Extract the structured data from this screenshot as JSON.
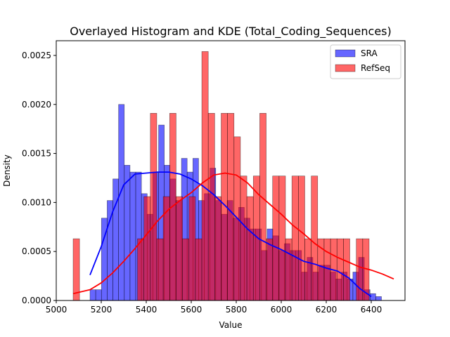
{
  "chart_data": {
    "type": "histogram",
    "title": "Overlayed Histogram and KDE (Total_Coding_Sequences)",
    "xlabel": "Value",
    "ylabel": "Density",
    "xlim": [
      5000,
      6550
    ],
    "ylim": [
      0,
      0.00265
    ],
    "xticks": [
      5000,
      5200,
      5400,
      5600,
      5800,
      6000,
      6200,
      6400
    ],
    "yticks": [
      0.0,
      0.0005,
      0.001,
      0.0015,
      0.002,
      0.0025
    ],
    "ytick_labels": [
      "0.0000",
      "0.0005",
      "0.0010",
      "0.0015",
      "0.0020",
      "0.0025"
    ],
    "legend_position": "top-right",
    "series": [
      {
        "name": "SRA",
        "color": "#0000ff",
        "kind": "histogram+kde",
        "bin_start": 5150,
        "bin_width": 25.4,
        "densities": [
          0.00011,
          0.00011,
          0.00084,
          0.00102,
          0.00124,
          0.002,
          0.00138,
          0.00131,
          0.00131,
          0.00109,
          0.00088,
          0.00131,
          0.00179,
          0.00138,
          0.00124,
          0.00102,
          0.00145,
          0.00131,
          0.00145,
          0.00102,
          0.00109,
          0.00135,
          0.00102,
          0.00088,
          0.00102,
          0.00084,
          0.00095,
          0.00084,
          0.00073,
          0.00073,
          0.00051,
          0.00073,
          0.00066,
          0.00051,
          0.00058,
          0.00051,
          0.00051,
          0.00029,
          0.00044,
          0.00029,
          0.00036,
          0.00036,
          0.00029,
          0.00022,
          0.00029,
          0.00022,
          0.00029,
          0.00044,
          0.00011,
          7e-05,
          4e-05
        ],
        "kde_x": [
          5150,
          5200,
          5250,
          5300,
          5350,
          5400,
          5450,
          5500,
          5550,
          5600,
          5650,
          5700,
          5750,
          5800,
          5850,
          5900,
          5950,
          6000,
          6050,
          6100,
          6150,
          6200,
          6250,
          6300,
          6350,
          6400
        ],
        "kde_y": [
          0.00026,
          0.00055,
          0.0009,
          0.00118,
          0.00129,
          0.0013,
          0.00131,
          0.00131,
          0.00129,
          0.00124,
          0.00117,
          0.00108,
          0.00097,
          0.00085,
          0.00073,
          0.00063,
          0.00057,
          0.00052,
          0.00046,
          0.0004,
          0.00037,
          0.00033,
          0.0003,
          0.00023,
          0.00012,
          4e-05
        ]
      },
      {
        "name": "RefSeq",
        "color": "#ff0000",
        "kind": "histogram+kde",
        "bin_start": 5075,
        "bin_width": 28.6,
        "densities": [
          0.00063,
          0,
          0,
          0,
          0,
          0,
          0,
          0,
          0,
          0,
          0.00063,
          0.00106,
          0.00191,
          0.00063,
          0.00106,
          0.00191,
          0.00106,
          0.00063,
          0.00106,
          0.00063,
          0.00254,
          0.00191,
          0.00106,
          0.00191,
          0.00191,
          0.00167,
          0.00127,
          0.00106,
          0.00127,
          0.00191,
          0.00063,
          0.00127,
          0.00127,
          0.00063,
          0.00127,
          0.00127,
          0.00063,
          0.00127,
          0.00063,
          0.00063,
          0.00063,
          0.00063,
          0.00063,
          0,
          0.00063,
          0.00063
        ],
        "kde_x": [
          5075,
          5150,
          5200,
          5250,
          5300,
          5350,
          5400,
          5450,
          5500,
          5550,
          5600,
          5650,
          5700,
          5750,
          5800,
          5850,
          5900,
          5950,
          6000,
          6050,
          6100,
          6150,
          6200,
          6250,
          6300,
          6350,
          6400,
          6450,
          6500
        ],
        "kde_y": [
          7e-05,
          0.00011,
          0.00018,
          0.00028,
          0.0004,
          0.00053,
          0.00067,
          0.00081,
          0.00093,
          0.00102,
          0.0011,
          0.0012,
          0.00128,
          0.0013,
          0.00128,
          0.0012,
          0.00108,
          0.00098,
          0.00088,
          0.00077,
          0.00068,
          0.00058,
          0.0005,
          0.00044,
          0.00039,
          0.00034,
          0.00031,
          0.00027,
          0.00022
        ]
      }
    ]
  }
}
